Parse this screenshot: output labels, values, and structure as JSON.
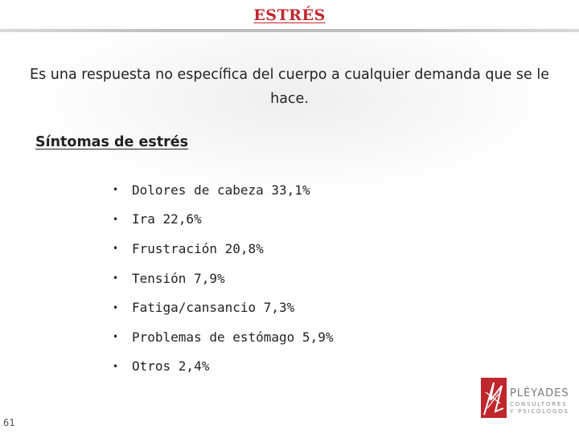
{
  "slide": {
    "title": "ESTRÉS",
    "definition": "Es una respuesta no específica del cuerpo a cualquier demanda que se le hace.",
    "subtitle": "Síntomas de estrés",
    "symptoms": [
      {
        "text": "Dolores de cabeza 33,1%",
        "percent": 33.1
      },
      {
        "text": "Ira 22,6%",
        "percent": 22.6
      },
      {
        "text": "Frustración 20,8%",
        "percent": 20.8
      },
      {
        "text": "Tensión 7,9%",
        "percent": 7.9
      },
      {
        "text": "Fatiga/cansancio 7,3%",
        "percent": 7.3
      },
      {
        "text": "Problemas de estómago 5,9%",
        "percent": 5.9
      },
      {
        "text": "Otros 2,4%",
        "percent": 2.4
      }
    ],
    "bullet_glyph": "•",
    "page_number": "61"
  },
  "logo": {
    "name": "PLÉYADES",
    "tagline": "CONSULTORES Y PSICÓLOGOS",
    "icon": "pleyades-logo-mark"
  },
  "colors": {
    "title": "#c0272d",
    "logo_mark": "#c0272d",
    "text": "#222222"
  }
}
